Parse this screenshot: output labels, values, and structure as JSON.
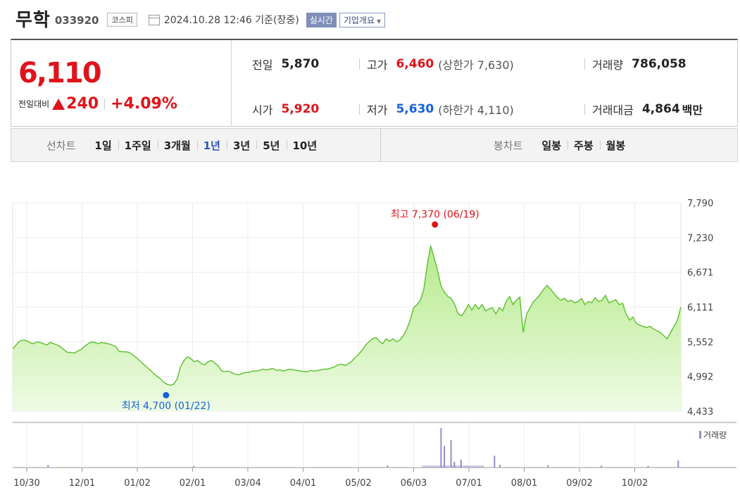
{
  "header": {
    "stock_name": "무학",
    "stock_code": "033920",
    "market": "코스피",
    "timestamp": "2024.10.28 12:46",
    "basis": "기준(장중)",
    "realtime_label": "실시간",
    "company_info_label": "기업개요"
  },
  "summary": {
    "price": "6,110",
    "change_label": "전일대비",
    "change_amount": "240",
    "change_percent": "+4.09%",
    "prev_close_label": "전일",
    "prev_close": "5,870",
    "open_label": "시가",
    "open": "5,920",
    "high_label": "고가",
    "high": "6,460",
    "upper_limit": "(상한가 7,630)",
    "low_label": "저가",
    "low": "5,630",
    "lower_limit": "(하한가 4,110)",
    "volume_label": "거래량",
    "volume": "786,058",
    "amount_label": "거래대금",
    "amount": "4,864",
    "amount_unit": "백만"
  },
  "toolbar": {
    "line_chart_label": "선차트",
    "periods": [
      "1일",
      "1주일",
      "3개월",
      "1년",
      "3년",
      "5년",
      "10년"
    ],
    "selected_period": "1년",
    "candle_chart_label": "봉차트",
    "candles": [
      "일봉",
      "주봉",
      "월봉"
    ]
  },
  "chart_data": {
    "type": "area",
    "y_ticks": [
      "7,790",
      "7,230",
      "6,671",
      "6,111",
      "5,552",
      "4,992",
      "4,433"
    ],
    "ylim": [
      4433,
      7790
    ],
    "x_ticks": [
      "10/30",
      "12/01",
      "01/02",
      "02/01",
      "03/04",
      "04/01",
      "05/02",
      "06/03",
      "07/01",
      "08/01",
      "09/02",
      "10/02"
    ],
    "max_annotation": "최고 7,370 (06/19)",
    "min_annotation": "최저 4,700 (01/22)",
    "volume_legend": "거래량",
    "colors": {
      "line": "#63c336",
      "fill_top": "#b6ea8c",
      "fill_bottom": "#eefbe4",
      "max": "#e0131a",
      "min": "#1561d6",
      "volume": "#9a8cc8"
    },
    "prices": [
      5440,
      5500,
      5560,
      5580,
      5570,
      5540,
      5520,
      5550,
      5540,
      5520,
      5500,
      5540,
      5520,
      5500,
      5470,
      5420,
      5380,
      5380,
      5370,
      5400,
      5430,
      5480,
      5520,
      5550,
      5540,
      5520,
      5540,
      5530,
      5520,
      5500,
      5480,
      5400,
      5390,
      5390,
      5380,
      5340,
      5300,
      5250,
      5200,
      5150,
      5100,
      5050,
      5000,
      4960,
      4900,
      4870,
      4850,
      4870,
      4950,
      5150,
      5250,
      5310,
      5280,
      5230,
      5250,
      5200,
      5180,
      5230,
      5250,
      5210,
      5160,
      5080,
      5070,
      5080,
      5050,
      5030,
      5020,
      5040,
      5060,
      5060,
      5080,
      5080,
      5090,
      5110,
      5100,
      5110,
      5120,
      5090,
      5100,
      5080,
      5100,
      5110,
      5100,
      5090,
      5080,
      5070,
      5070,
      5090,
      5080,
      5090,
      5100,
      5110,
      5110,
      5130,
      5150,
      5180,
      5190,
      5170,
      5200,
      5240,
      5300,
      5350,
      5420,
      5500,
      5550,
      5600,
      5620,
      5560,
      5520,
      5600,
      5560,
      5600,
      5550,
      5580,
      5650,
      5750,
      5900,
      6100,
      6150,
      6220,
      6400,
      6800,
      7100,
      6900,
      6700,
      6450,
      6350,
      6280,
      6250,
      6150,
      6000,
      5970,
      6050,
      6150,
      6060,
      6150,
      6080,
      6150,
      6050,
      6080,
      6100,
      6000,
      6100,
      6050,
      6200,
      6280,
      6150,
      6220,
      6270,
      5700,
      6000,
      6100,
      6200,
      6250,
      6320,
      6400,
      6460,
      6400,
      6330,
      6260,
      6220,
      6250,
      6200,
      6220,
      6180,
      6200,
      6250,
      6150,
      6200,
      6180,
      6260,
      6200,
      6220,
      6300,
      6180,
      6200,
      6230,
      6150,
      6170,
      6000,
      5900,
      5950,
      5850,
      5820,
      5800,
      5780,
      5800,
      5760,
      5730,
      5700,
      5650,
      5600,
      5700,
      5800,
      5900,
      6110
    ],
    "volume_spikes": [
      [
        0.052,
        0.06
      ],
      [
        0.27,
        0.04
      ],
      [
        0.56,
        0.05
      ],
      [
        0.64,
        1.0
      ],
      [
        0.645,
        0.55
      ],
      [
        0.655,
        0.7
      ],
      [
        0.66,
        0.15
      ],
      [
        0.67,
        0.2
      ],
      [
        0.72,
        0.3
      ],
      [
        0.728,
        0.07
      ],
      [
        0.8,
        0.06
      ],
      [
        0.88,
        0.05
      ],
      [
        0.95,
        0.04
      ],
      [
        0.995,
        0.18
      ]
    ]
  }
}
